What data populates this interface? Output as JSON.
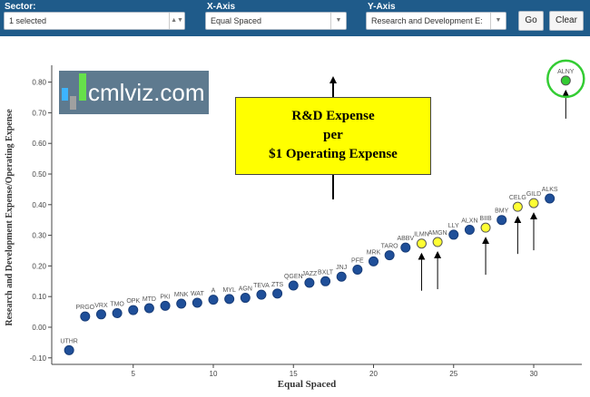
{
  "toolbar": {
    "sector_label": "Sector:",
    "sector_value": "1 selected",
    "xaxis_label": "X-Axis",
    "xaxis_value": "Equal Spaced",
    "yaxis_label": "Y-Axis",
    "yaxis_value": "Research and Development E:",
    "go_label": "Go",
    "clear_label": "Clear",
    "bar_color": "#1f5b8a"
  },
  "logo": {
    "text": "cmlviz.com"
  },
  "callout": {
    "line1": "R&D Expense",
    "line2": "per",
    "line3": "$1 Operating Expense"
  },
  "chart_data": {
    "type": "scatter",
    "xlabel": "Equal Spaced",
    "ylabel": "Research and Development Expense/Operating Expense",
    "xlim": [
      0,
      33
    ],
    "ylim": [
      -0.1,
      0.85
    ],
    "xticks": [
      5,
      10,
      15,
      20,
      25,
      30
    ],
    "yticks": [
      -0.1,
      0.0,
      0.1,
      0.2,
      0.3,
      0.4,
      0.5,
      0.6,
      0.7,
      0.8
    ],
    "ytick_labels": [
      "-0.10",
      "0.00",
      "0.10",
      "0.20",
      "0.30",
      "0.40",
      "0.50",
      "0.60",
      "0.70",
      "0.80"
    ],
    "grid": false,
    "colors": {
      "default": "#1f4f99",
      "highlight": "#ffff33",
      "top": "#33cc33",
      "circle": "#33cc33"
    },
    "points": [
      {
        "x": 1,
        "y": -0.075,
        "label": "UTHR",
        "color": "default"
      },
      {
        "x": 2,
        "y": 0.035,
        "label": "PRGO",
        "color": "default"
      },
      {
        "x": 3,
        "y": 0.042,
        "label": "VRX",
        "color": "default"
      },
      {
        "x": 4,
        "y": 0.046,
        "label": "TMO",
        "color": "default"
      },
      {
        "x": 5,
        "y": 0.056,
        "label": "OPK",
        "color": "default"
      },
      {
        "x": 6,
        "y": 0.062,
        "label": "MTD",
        "color": "default"
      },
      {
        "x": 7,
        "y": 0.07,
        "label": "PKI",
        "color": "default"
      },
      {
        "x": 8,
        "y": 0.077,
        "label": "MNK",
        "color": "default"
      },
      {
        "x": 9,
        "y": 0.08,
        "label": "WAT",
        "color": "default"
      },
      {
        "x": 10,
        "y": 0.09,
        "label": "A",
        "color": "default"
      },
      {
        "x": 11,
        "y": 0.092,
        "label": "MYL",
        "color": "default"
      },
      {
        "x": 12,
        "y": 0.096,
        "label": "AGN",
        "color": "default"
      },
      {
        "x": 13,
        "y": 0.106,
        "label": "TEVA",
        "color": "default"
      },
      {
        "x": 14,
        "y": 0.11,
        "label": "ZTS",
        "color": "default"
      },
      {
        "x": 15,
        "y": 0.136,
        "label": "QGEN",
        "color": "default"
      },
      {
        "x": 16,
        "y": 0.145,
        "label": "JAZZ",
        "color": "default"
      },
      {
        "x": 17,
        "y": 0.15,
        "label": "BXLT",
        "color": "default"
      },
      {
        "x": 18,
        "y": 0.165,
        "label": "JNJ",
        "color": "default"
      },
      {
        "x": 19,
        "y": 0.188,
        "label": "PFE",
        "color": "default"
      },
      {
        "x": 20,
        "y": 0.215,
        "label": "MRK",
        "color": "default"
      },
      {
        "x": 21,
        "y": 0.235,
        "label": "TARO",
        "color": "default"
      },
      {
        "x": 22,
        "y": 0.26,
        "label": "ABBV",
        "color": "default"
      },
      {
        "x": 23,
        "y": 0.273,
        "label": "ILMN",
        "color": "highlight"
      },
      {
        "x": 24,
        "y": 0.278,
        "label": "AMGN",
        "color": "highlight"
      },
      {
        "x": 25,
        "y": 0.302,
        "label": "LLY",
        "color": "default"
      },
      {
        "x": 26,
        "y": 0.318,
        "label": "ALXN",
        "color": "default"
      },
      {
        "x": 27,
        "y": 0.325,
        "label": "BIIB",
        "color": "highlight"
      },
      {
        "x": 28,
        "y": 0.35,
        "label": "BMY",
        "color": "default"
      },
      {
        "x": 29,
        "y": 0.393,
        "label": "CELG",
        "color": "highlight"
      },
      {
        "x": 30,
        "y": 0.405,
        "label": "GILD",
        "color": "highlight"
      },
      {
        "x": 31,
        "y": 0.42,
        "label": "ALKS",
        "color": "default"
      },
      {
        "x": 32,
        "y": 0.805,
        "label": "ALNY",
        "color": "top"
      }
    ],
    "annotations": {
      "up_arrows_at_x": [
        23,
        24,
        27,
        29,
        30,
        32
      ],
      "circled_point_x": 32
    }
  }
}
